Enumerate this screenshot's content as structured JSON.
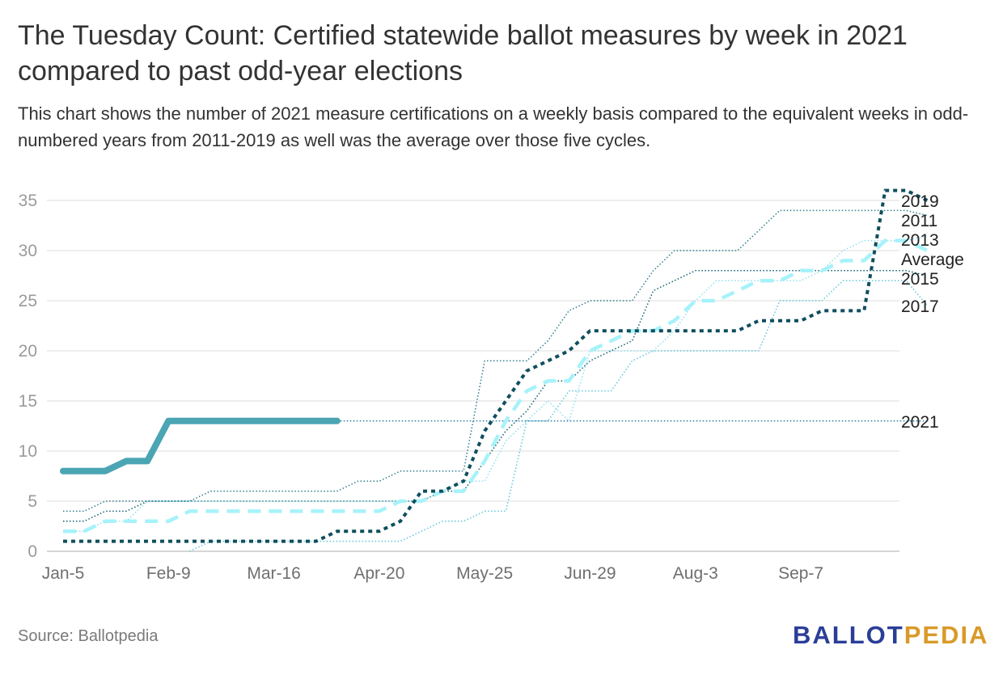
{
  "title": "The Tuesday Count: Certified statewide ballot measures by week in 2021 compared to past odd-year elections",
  "subtitle": "This chart shows the number of 2021 measure certifications on a weekly basis compared to the equivalent weeks in odd-numbered years from 2011-2019 as well was the average over those five cycles.",
  "source": "Source: Ballotpedia",
  "logo": {
    "part1": "BALLOT",
    "part2": "PEDIA",
    "color1": "#2b3e97",
    "color2": "#d99a28"
  },
  "chart_data": {
    "type": "line",
    "x_tick_labels": [
      "Jan-5",
      "Feb-9",
      "Mar-16",
      "Apr-20",
      "May-25",
      "Jun-29",
      "Aug-3",
      "Sep-7"
    ],
    "x_tick_weeks": [
      0,
      5,
      10,
      15,
      20,
      25,
      30,
      35
    ],
    "ylim": [
      0,
      35
    ],
    "yticks": [
      0,
      5,
      10,
      15,
      20,
      25,
      30,
      35
    ],
    "grid": true,
    "series": [
      {
        "name": "2019",
        "color": "#0f4f5e",
        "style": "dotted-thick",
        "width": 4,
        "values": [
          1,
          1,
          1,
          1,
          1,
          1,
          1,
          1,
          1,
          1,
          1,
          1,
          1,
          2,
          2,
          2,
          3,
          6,
          6,
          7,
          12,
          15,
          18,
          19,
          20,
          22,
          22,
          22,
          22,
          22,
          22,
          22,
          22,
          23,
          23,
          23,
          24,
          24,
          24,
          36,
          36,
          35
        ]
      },
      {
        "name": "2011",
        "color": "#2e7d8c",
        "style": "dotted",
        "width": 1.5,
        "values": [
          4,
          4,
          5,
          5,
          5,
          5,
          5,
          6,
          6,
          6,
          6,
          6,
          6,
          6,
          7,
          7,
          8,
          8,
          8,
          8,
          19,
          19,
          19,
          21,
          24,
          25,
          25,
          25,
          28,
          30,
          30,
          30,
          30,
          32,
          34,
          34,
          34,
          34,
          34,
          34,
          34,
          33.5
        ]
      },
      {
        "name": "2013",
        "color": "#8fdff0",
        "style": "dotted",
        "width": 1.5,
        "values": [
          2,
          2,
          3,
          3,
          5,
          5,
          5,
          5,
          5,
          5,
          5,
          5,
          5,
          5,
          5,
          5,
          5,
          5,
          6,
          7,
          7,
          11,
          13,
          15,
          13,
          20,
          20,
          20,
          20,
          22,
          25,
          27,
          27,
          27,
          27,
          27,
          28,
          30,
          31,
          31,
          31,
          31.5
        ]
      },
      {
        "name": "Average",
        "color": "#a6f2fa",
        "style": "dashed",
        "width": 4.5,
        "values": [
          2,
          2,
          3,
          3,
          3,
          3,
          4,
          4,
          4,
          4,
          4,
          4,
          4,
          4,
          4,
          4,
          5,
          5,
          6,
          6,
          9,
          13,
          16,
          17,
          17,
          20,
          21,
          22,
          22,
          23,
          25,
          25,
          26,
          27,
          27,
          28,
          28,
          29,
          29,
          31,
          31,
          30
        ]
      },
      {
        "name": "2015",
        "color": "#0f5e6e",
        "style": "dotted",
        "width": 1.5,
        "values": [
          3,
          3,
          4,
          4,
          5,
          5,
          5,
          5,
          5,
          5,
          5,
          5,
          5,
          5,
          5,
          5,
          5,
          5,
          6,
          6,
          9,
          12,
          14,
          17,
          17,
          19,
          20,
          21,
          26,
          27,
          28,
          28,
          28,
          28,
          28,
          28,
          28,
          28,
          28,
          28,
          28,
          27.5
        ]
      },
      {
        "name": "2017",
        "color": "#5ec6da",
        "style": "dotted",
        "width": 1.5,
        "values": [
          null,
          null,
          null,
          null,
          null,
          null,
          0,
          1,
          1,
          1,
          1,
          1,
          1,
          1,
          1,
          1,
          1,
          2,
          3,
          3,
          4,
          4,
          13,
          13,
          16,
          16,
          16,
          19,
          20,
          20,
          20,
          20,
          20,
          20,
          25,
          25,
          25,
          27,
          27,
          27,
          27,
          24.5
        ]
      },
      {
        "name": "2021",
        "color": "#4ba5b3",
        "style": "solid",
        "width": 8,
        "values": [
          8,
          8,
          8,
          9,
          9,
          13,
          13,
          13,
          13,
          13,
          13,
          13,
          13,
          13
        ]
      },
      {
        "name": "2021-projection",
        "color": "#2e7ba3",
        "style": "dotted",
        "width": 1.5,
        "start_week": 13,
        "values": [
          13,
          13,
          13,
          13,
          13,
          13,
          13,
          13,
          13,
          13,
          13,
          13,
          13,
          13,
          13,
          13,
          13,
          13,
          13,
          13,
          13,
          13,
          13,
          13,
          13,
          13,
          13,
          13,
          13
        ]
      }
    ],
    "end_labels": [
      {
        "series": "2019",
        "text": "2019"
      },
      {
        "series": "2011",
        "text": "2011"
      },
      {
        "series": "2013",
        "text": "2013"
      },
      {
        "series": "Average",
        "text": "Average"
      },
      {
        "series": "2015",
        "text": "2015"
      },
      {
        "series": "2017",
        "text": "2017"
      },
      {
        "series": "2021-projection",
        "text": "2021"
      }
    ]
  }
}
